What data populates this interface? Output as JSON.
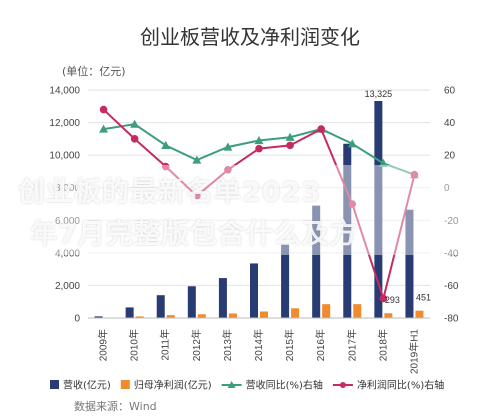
{
  "chart_data": {
    "type": "bar",
    "title": "创业板营收及净利润变化",
    "unit_label": "(单位：亿元)",
    "categories": [
      "2009年",
      "2010年",
      "2011年",
      "2012年",
      "2013年",
      "2014年",
      "2015年",
      "2016年",
      "2017年",
      "2018年",
      "2019年H1"
    ],
    "left_axis": {
      "min": 0,
      "max": 14000,
      "ticks": [
        "0",
        "2,000",
        "4,000",
        "6,000",
        "8,000",
        "10,000",
        "12,000",
        "14,000"
      ]
    },
    "right_axis": {
      "min": -80,
      "max": 60,
      "ticks": [
        "60",
        "40",
        "20",
        "0",
        "-20",
        "-40",
        "-60",
        "-80"
      ]
    },
    "series": [
      {
        "name": "营收(亿元)",
        "type": "bar",
        "axis": "left",
        "color": "#283b73",
        "values": [
          100,
          650,
          1400,
          1950,
          2450,
          3350,
          4500,
          6900,
          10700,
          13325,
          6650
        ]
      },
      {
        "name": "归母净利润(亿元)",
        "type": "bar",
        "axis": "left",
        "color": "#f08c2d",
        "values": [
          15,
          100,
          180,
          230,
          280,
          400,
          600,
          850,
          850,
          293,
          451
        ]
      },
      {
        "name": "营收同比(%)右轴",
        "type": "line",
        "axis": "right",
        "color": "#3c9e7d",
        "marker": "triangle",
        "values": [
          36,
          39,
          26,
          17,
          25,
          29,
          31,
          36,
          27,
          15,
          8
        ]
      },
      {
        "name": "净利润同比(%)右轴",
        "type": "line",
        "axis": "right",
        "color": "#c62a5e",
        "marker": "circle",
        "values": [
          48,
          30,
          13,
          -5,
          11,
          24,
          26,
          36,
          -10,
          -68,
          8
        ]
      }
    ],
    "annotations": [
      {
        "category": "2018年",
        "series": "营收(亿元)",
        "text": "13,325"
      },
      {
        "category": "2018年",
        "series": "归母净利润(亿元)",
        "text": "293"
      },
      {
        "category": "2019年H1",
        "series": "归母净利润(亿元)",
        "text": "451"
      }
    ],
    "legend_position": "bottom",
    "grid": true
  },
  "source_text": "数据来源：Wind",
  "watermark": {
    "line1": "创业板的最新名单2023",
    "line2": "年7月完整版包含什么及方"
  }
}
